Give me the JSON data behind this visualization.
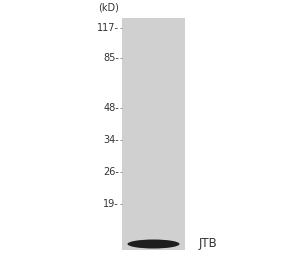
{
  "outer_background": "#ffffff",
  "lane_color": "#d0d0d0",
  "band_color": "#1e1e1e",
  "marker_labels": [
    "117-",
    "85-",
    "48-",
    "34-",
    "26-",
    "19-"
  ],
  "kd_label": "(kD)",
  "band_label": "JTB",
  "font_size_markers": 7.0,
  "font_size_kd": 7.0,
  "font_size_band_label": 8.5,
  "marker_color": "#333333"
}
